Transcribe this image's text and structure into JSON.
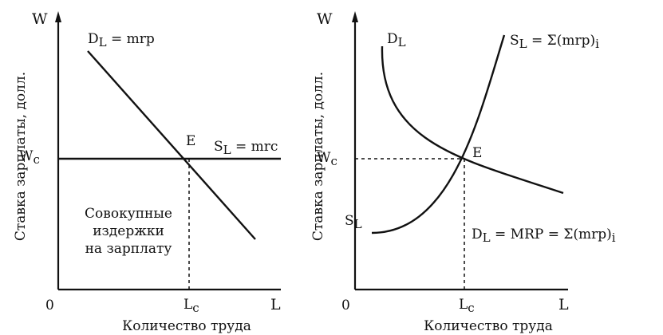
{
  "left_panel": {
    "y_axis_symbol": "W",
    "x_axis_symbol": "L",
    "origin": "0",
    "y_axis_title": "Ставка зарплаты, долл.",
    "x_axis_title": "Количество труда",
    "wage_tick": "W",
    "wage_tick_sub": "c",
    "labor_tick": "L",
    "labor_tick_sub": "c",
    "demand_label_main": "D",
    "demand_label_sub": "L",
    "demand_label_rest": " = mrp",
    "supply_label_main": "S",
    "supply_label_sub": "L",
    "supply_label_rest": " = mrc",
    "equilibrium_label": "E",
    "area_text_line1": "Совокупные",
    "area_text_line2": "издержки",
    "area_text_line3": "на зарплату"
  },
  "right_panel": {
    "y_axis_symbol": "W",
    "x_axis_symbol": "L",
    "origin": "0",
    "y_axis_title": "Ставка зарплаты, долл.",
    "x_axis_title": "Количество труда",
    "wage_tick": "W",
    "wage_tick_sub": "c",
    "labor_tick": "L",
    "labor_tick_sub": "c",
    "demand_top_main": "D",
    "demand_top_sub": "L",
    "supply_top_main": "S",
    "supply_top_sub": "L",
    "supply_top_rest": " = Σ(mrp)",
    "supply_top_sub2": "i",
    "supply_bottom_main": "S",
    "supply_bottom_sub": "L",
    "equilibrium_label": "E",
    "demand_bottom_main": "D",
    "demand_bottom_sub": "L",
    "demand_bottom_rest": " = MRP = Σ(mrp)",
    "demand_bottom_sub2": "i"
  }
}
